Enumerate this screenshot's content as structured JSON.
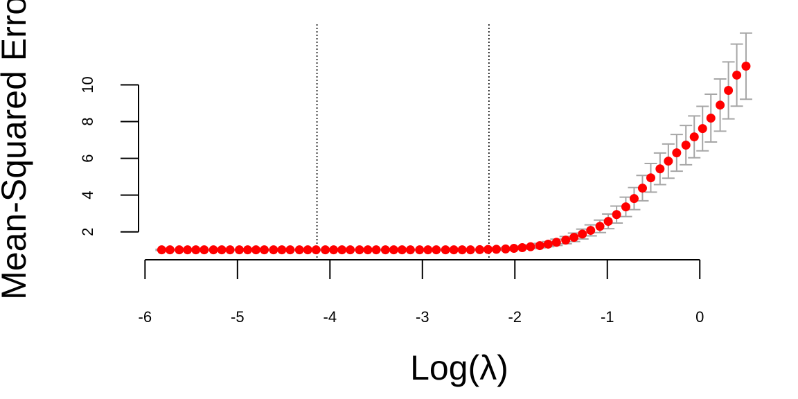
{
  "chart_data": {
    "type": "scatter",
    "xlabel": "Log(λ)",
    "ylabel": "Mean-Squared Error",
    "x": [
      -5.82,
      -5.73,
      -5.63,
      -5.54,
      -5.45,
      -5.36,
      -5.26,
      -5.17,
      -5.08,
      -4.98,
      -4.89,
      -4.8,
      -4.71,
      -4.61,
      -4.52,
      -4.43,
      -4.33,
      -4.24,
      -4.15,
      -4.05,
      -3.96,
      -3.87,
      -3.78,
      -3.68,
      -3.59,
      -3.5,
      -3.4,
      -3.31,
      -3.22,
      -3.13,
      -3.03,
      -2.94,
      -2.85,
      -2.75,
      -2.66,
      -2.57,
      -2.48,
      -2.38,
      -2.29,
      -2.2,
      -2.1,
      -2.01,
      -1.92,
      -1.83,
      -1.73,
      -1.64,
      -1.55,
      -1.45,
      -1.36,
      -1.27,
      -1.18,
      -1.08,
      -0.99,
      -0.9,
      -0.8,
      -0.71,
      -0.62,
      -0.53,
      -0.43,
      -0.34,
      -0.25,
      -0.15,
      -0.06,
      0.03,
      0.12,
      0.22,
      0.31,
      0.4,
      0.5
    ],
    "series": [
      {
        "color": "#ff0000",
        "error_color": "#a6a6a6",
        "values": [
          1.02,
          1.02,
          1.02,
          1.02,
          1.02,
          1.02,
          1.02,
          1.02,
          1.02,
          1.02,
          1.02,
          1.02,
          1.02,
          1.02,
          1.02,
          1.02,
          1.02,
          1.02,
          1.02,
          1.02,
          1.02,
          1.02,
          1.02,
          1.02,
          1.02,
          1.02,
          1.02,
          1.02,
          1.02,
          1.02,
          1.02,
          1.02,
          1.02,
          1.02,
          1.02,
          1.02,
          1.02,
          1.03,
          1.04,
          1.05,
          1.07,
          1.1,
          1.14,
          1.19,
          1.25,
          1.33,
          1.43,
          1.55,
          1.7,
          1.88,
          2.08,
          2.3,
          2.57,
          2.94,
          3.36,
          3.81,
          4.38,
          4.94,
          5.43,
          5.85,
          6.3,
          6.72,
          7.17,
          7.62,
          8.19,
          8.9,
          9.7,
          10.53,
          11.02
        ],
        "errors": [
          0.03,
          0.03,
          0.03,
          0.03,
          0.03,
          0.03,
          0.03,
          0.03,
          0.03,
          0.03,
          0.03,
          0.03,
          0.03,
          0.03,
          0.03,
          0.03,
          0.03,
          0.03,
          0.03,
          0.03,
          0.03,
          0.03,
          0.03,
          0.03,
          0.03,
          0.03,
          0.03,
          0.03,
          0.03,
          0.03,
          0.03,
          0.03,
          0.03,
          0.03,
          0.03,
          0.03,
          0.03,
          0.03,
          0.04,
          0.05,
          0.06,
          0.07,
          0.08,
          0.1,
          0.12,
          0.14,
          0.17,
          0.2,
          0.23,
          0.27,
          0.3,
          0.34,
          0.4,
          0.46,
          0.53,
          0.6,
          0.69,
          0.78,
          0.86,
          0.93,
          1.0,
          1.07,
          1.14,
          1.21,
          1.3,
          1.42,
          1.55,
          1.69,
          1.8
        ]
      }
    ],
    "vlines": [
      -4.14,
      -2.28
    ],
    "xlim": [
      -6.07,
      0.77
    ],
    "ylim": [
      0.48,
      13.3
    ],
    "xticks": [
      -6,
      -5,
      -4,
      -3,
      -2,
      -1,
      0
    ],
    "yticks": [
      2,
      4,
      6,
      8,
      10
    ]
  }
}
